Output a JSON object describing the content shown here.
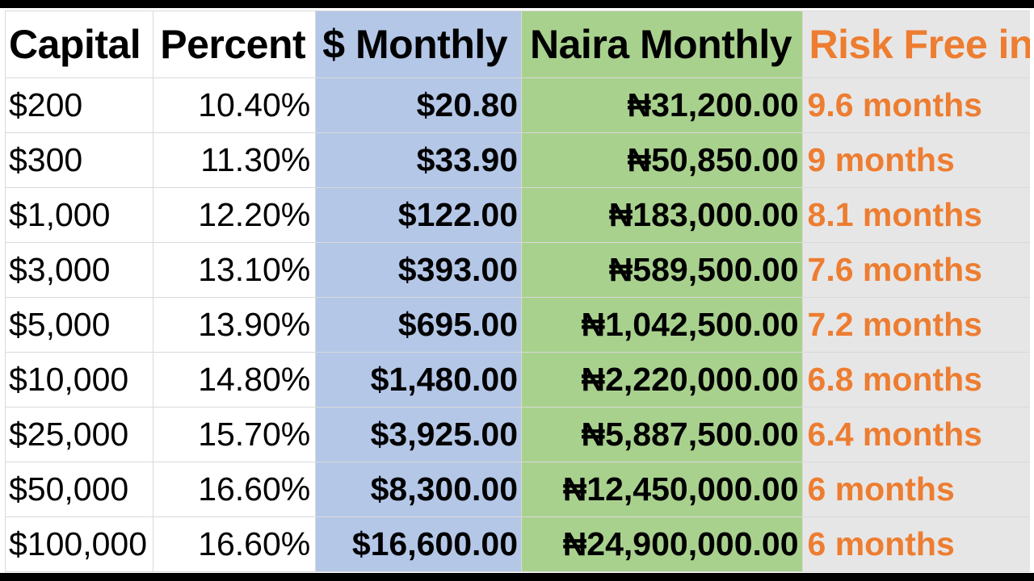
{
  "headers": {
    "capital": "Capital",
    "percent": "Percent",
    "usd_monthly": "$ Monthly",
    "naira_monthly": "Naira Monthly",
    "risk_free": "Risk Free in"
  },
  "rows": [
    {
      "capital": "$200",
      "percent": "10.40%",
      "usd": "$20.80",
      "naira": "₦31,200.00",
      "risk": "9.6 months"
    },
    {
      "capital": "$300",
      "percent": "11.30%",
      "usd": "$33.90",
      "naira": "₦50,850.00",
      "risk": "9 months"
    },
    {
      "capital": "$1,000",
      "percent": "12.20%",
      "usd": "$122.00",
      "naira": "₦183,000.00",
      "risk": "8.1 months"
    },
    {
      "capital": "$3,000",
      "percent": "13.10%",
      "usd": "$393.00",
      "naira": "₦589,500.00",
      "risk": "7.6 months"
    },
    {
      "capital": "$5,000",
      "percent": "13.90%",
      "usd": "$695.00",
      "naira": "₦1,042,500.00",
      "risk": "7.2 months"
    },
    {
      "capital": "$10,000",
      "percent": "14.80%",
      "usd": "$1,480.00",
      "naira": "₦2,220,000.00",
      "risk": "6.8 months"
    },
    {
      "capital": "$25,000",
      "percent": "15.70%",
      "usd": "$3,925.00",
      "naira": "₦5,887,500.00",
      "risk": "6.4 months"
    },
    {
      "capital": "$50,000",
      "percent": "16.60%",
      "usd": "$8,300.00",
      "naira": "₦12,450,000.00",
      "risk": "6 months"
    },
    {
      "capital": "$100,000",
      "percent": "16.60%",
      "usd": "$16,600.00",
      "naira": "₦24,900,000.00",
      "risk": "6 months"
    }
  ],
  "colors": {
    "header_fill": "#ffd966",
    "header_text": "#ed7d31",
    "usd_fill": "#b4c7e7",
    "naira_fill": "#a9d18e",
    "risk_fill": "#e7e6e6",
    "risk_text": "#ed7d31"
  }
}
